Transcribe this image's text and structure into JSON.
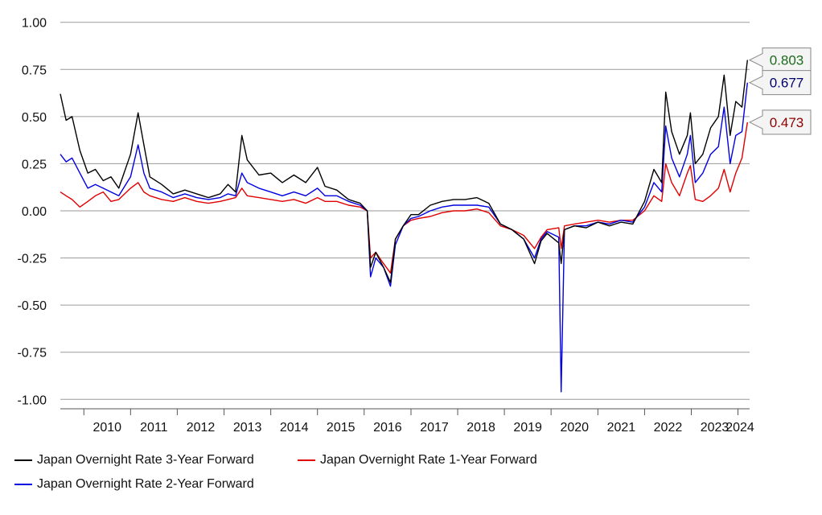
{
  "chart_data": {
    "type": "line",
    "title": "",
    "xlabel": "",
    "ylabel": "",
    "ylim": [
      -1.05,
      1.05
    ],
    "xlim": [
      "2009-07-01",
      "2024-04-01"
    ],
    "yticks": [
      "1.00",
      "0.75",
      "0.50",
      "0.25",
      "0.00",
      "-0.25",
      "-0.50",
      "-0.75",
      "-1.00"
    ],
    "ytick_values": [
      1,
      0.75,
      0.5,
      0.25,
      0,
      -0.25,
      -0.5,
      -0.75,
      -1
    ],
    "xticks": [
      "2010",
      "2011",
      "2012",
      "2013",
      "2014",
      "2015",
      "2016",
      "2017",
      "2018",
      "2019",
      "2020",
      "2021",
      "2022",
      "2023",
      "2024"
    ],
    "grid": true,
    "series": [
      {
        "name": "Japan Overnight Rate 3-Year Forward",
        "color": "#000000",
        "last_label": "0.803",
        "label_color": "#1a6b1a",
        "x": [
          "2009-07-01",
          "2009-08-15",
          "2009-10-01",
          "2009-12-01",
          "2010-02-01",
          "2010-04-01",
          "2010-06-01",
          "2010-08-01",
          "2010-10-01",
          "2011-01-01",
          "2011-03-01",
          "2011-04-15",
          "2011-06-01",
          "2011-09-01",
          "2011-12-01",
          "2012-03-01",
          "2012-06-01",
          "2012-09-01",
          "2012-12-01",
          "2013-02-01",
          "2013-04-01",
          "2013-05-20",
          "2013-07-01",
          "2013-10-01",
          "2014-01-01",
          "2014-04-01",
          "2014-07-01",
          "2014-10-01",
          "2015-01-01",
          "2015-03-01",
          "2015-06-01",
          "2015-09-01",
          "2015-12-01",
          "2016-01-25",
          "2016-02-20",
          "2016-04-01",
          "2016-06-01",
          "2016-07-25",
          "2016-09-01",
          "2016-11-01",
          "2017-01-01",
          "2017-03-01",
          "2017-06-01",
          "2017-09-01",
          "2017-12-01",
          "2018-03-01",
          "2018-06-01",
          "2018-09-01",
          "2018-12-01",
          "2019-03-01",
          "2019-06-01",
          "2019-08-25",
          "2019-10-15",
          "2019-12-01",
          "2020-03-01",
          "2020-03-20",
          "2020-04-15",
          "2020-07-01",
          "2020-10-01",
          "2021-01-01",
          "2021-04-01",
          "2021-07-01",
          "2021-10-01",
          "2022-01-01",
          "2022-03-15",
          "2022-05-15",
          "2022-06-15",
          "2022-08-01",
          "2022-10-01",
          "2022-12-01",
          "2022-12-25",
          "2023-02-01",
          "2023-04-01",
          "2023-06-01",
          "2023-08-01",
          "2023-09-15",
          "2023-11-01",
          "2023-12-15",
          "2024-02-01",
          "2024-03-15"
        ],
        "values": [
          0.62,
          0.48,
          0.5,
          0.32,
          0.2,
          0.22,
          0.16,
          0.18,
          0.12,
          0.3,
          0.52,
          0.35,
          0.18,
          0.14,
          0.09,
          0.11,
          0.09,
          0.07,
          0.09,
          0.14,
          0.1,
          0.4,
          0.27,
          0.19,
          0.2,
          0.15,
          0.19,
          0.15,
          0.23,
          0.13,
          0.11,
          0.06,
          0.04,
          0.0,
          -0.3,
          -0.22,
          -0.3,
          -0.38,
          -0.15,
          -0.08,
          -0.02,
          -0.02,
          0.03,
          0.05,
          0.06,
          0.06,
          0.07,
          0.04,
          -0.07,
          -0.1,
          -0.15,
          -0.28,
          -0.16,
          -0.12,
          -0.17,
          -0.28,
          -0.1,
          -0.08,
          -0.09,
          -0.06,
          -0.08,
          -0.06,
          -0.07,
          0.05,
          0.22,
          0.15,
          0.63,
          0.42,
          0.3,
          0.4,
          0.52,
          0.25,
          0.3,
          0.44,
          0.5,
          0.72,
          0.4,
          0.58,
          0.55,
          0.8
        ]
      },
      {
        "name": "Japan Overnight Rate 1-Year Forward",
        "color": "#e00000",
        "last_label": "0.473",
        "label_color": "#8b0000",
        "x": [
          "2009-07-01",
          "2009-08-15",
          "2009-10-01",
          "2009-12-01",
          "2010-02-01",
          "2010-04-01",
          "2010-06-01",
          "2010-08-01",
          "2010-10-01",
          "2011-01-01",
          "2011-03-01",
          "2011-04-15",
          "2011-06-01",
          "2011-09-01",
          "2011-12-01",
          "2012-03-01",
          "2012-06-01",
          "2012-09-01",
          "2012-12-01",
          "2013-02-01",
          "2013-04-01",
          "2013-05-20",
          "2013-07-01",
          "2013-10-01",
          "2014-01-01",
          "2014-04-01",
          "2014-07-01",
          "2014-10-01",
          "2015-01-01",
          "2015-03-01",
          "2015-06-01",
          "2015-09-01",
          "2015-12-01",
          "2016-01-25",
          "2016-02-20",
          "2016-04-01",
          "2016-06-01",
          "2016-07-25",
          "2016-09-01",
          "2016-11-01",
          "2017-01-01",
          "2017-03-01",
          "2017-06-01",
          "2017-09-01",
          "2017-12-01",
          "2018-03-01",
          "2018-06-01",
          "2018-09-01",
          "2018-12-01",
          "2019-03-01",
          "2019-06-01",
          "2019-08-25",
          "2019-10-15",
          "2019-12-01",
          "2020-03-01",
          "2020-03-20",
          "2020-04-15",
          "2020-07-01",
          "2020-10-01",
          "2021-01-01",
          "2021-04-01",
          "2021-07-01",
          "2021-10-01",
          "2022-01-01",
          "2022-03-15",
          "2022-05-15",
          "2022-06-15",
          "2022-08-01",
          "2022-10-01",
          "2022-12-01",
          "2022-12-25",
          "2023-02-01",
          "2023-04-01",
          "2023-06-01",
          "2023-08-01",
          "2023-09-15",
          "2023-11-01",
          "2023-12-15",
          "2024-02-01",
          "2024-03-15"
        ],
        "values": [
          0.1,
          0.08,
          0.06,
          0.02,
          0.05,
          0.08,
          0.1,
          0.05,
          0.06,
          0.12,
          0.15,
          0.1,
          0.08,
          0.06,
          0.05,
          0.07,
          0.05,
          0.04,
          0.05,
          0.06,
          0.07,
          0.12,
          0.08,
          0.07,
          0.06,
          0.05,
          0.06,
          0.04,
          0.07,
          0.05,
          0.05,
          0.03,
          0.02,
          0.0,
          -0.25,
          -0.22,
          -0.28,
          -0.33,
          -0.15,
          -0.08,
          -0.05,
          -0.04,
          -0.03,
          -0.01,
          0.0,
          0.0,
          0.01,
          -0.01,
          -0.08,
          -0.1,
          -0.13,
          -0.2,
          -0.14,
          -0.1,
          -0.09,
          -0.2,
          -0.08,
          -0.07,
          -0.06,
          -0.05,
          -0.06,
          -0.05,
          -0.05,
          0.0,
          0.08,
          0.05,
          0.25,
          0.15,
          0.08,
          0.2,
          0.24,
          0.06,
          0.05,
          0.08,
          0.12,
          0.22,
          0.1,
          0.2,
          0.28,
          0.47
        ]
      },
      {
        "name": "Japan Overnight Rate 2-Year Forward",
        "color": "#0000e0",
        "last_label": "0.677",
        "label_color": "#00006b",
        "x": [
          "2009-07-01",
          "2009-08-15",
          "2009-10-01",
          "2009-12-01",
          "2010-02-01",
          "2010-04-01",
          "2010-06-01",
          "2010-08-01",
          "2010-10-01",
          "2011-01-01",
          "2011-03-01",
          "2011-04-15",
          "2011-06-01",
          "2011-09-01",
          "2011-12-01",
          "2012-03-01",
          "2012-06-01",
          "2012-09-01",
          "2012-12-01",
          "2013-02-01",
          "2013-04-01",
          "2013-05-20",
          "2013-07-01",
          "2013-10-01",
          "2014-01-01",
          "2014-04-01",
          "2014-07-01",
          "2014-10-01",
          "2015-01-01",
          "2015-03-01",
          "2015-06-01",
          "2015-09-01",
          "2015-12-01",
          "2016-01-25",
          "2016-02-20",
          "2016-04-01",
          "2016-06-01",
          "2016-07-25",
          "2016-09-01",
          "2016-11-01",
          "2017-01-01",
          "2017-03-01",
          "2017-06-01",
          "2017-09-01",
          "2017-12-01",
          "2018-03-01",
          "2018-06-01",
          "2018-09-01",
          "2018-12-01",
          "2019-03-01",
          "2019-06-01",
          "2019-08-25",
          "2019-10-15",
          "2019-12-01",
          "2020-03-01",
          "2020-03-20",
          "2020-04-15",
          "2020-07-01",
          "2020-10-01",
          "2021-01-01",
          "2021-04-01",
          "2021-07-01",
          "2021-10-01",
          "2022-01-01",
          "2022-03-15",
          "2022-05-15",
          "2022-06-15",
          "2022-08-01",
          "2022-10-01",
          "2022-12-01",
          "2022-12-25",
          "2023-02-01",
          "2023-04-01",
          "2023-06-01",
          "2023-08-01",
          "2023-09-15",
          "2023-11-01",
          "2023-12-15",
          "2024-02-01",
          "2024-03-15"
        ],
        "values": [
          0.3,
          0.26,
          0.28,
          0.2,
          0.12,
          0.14,
          0.12,
          0.1,
          0.08,
          0.18,
          0.35,
          0.2,
          0.12,
          0.1,
          0.07,
          0.09,
          0.07,
          0.06,
          0.07,
          0.09,
          0.08,
          0.2,
          0.15,
          0.12,
          0.1,
          0.08,
          0.1,
          0.08,
          0.12,
          0.08,
          0.08,
          0.05,
          0.03,
          0.0,
          -0.35,
          -0.25,
          -0.3,
          -0.4,
          -0.18,
          -0.08,
          -0.04,
          -0.03,
          0.0,
          0.02,
          0.03,
          0.03,
          0.03,
          0.02,
          -0.07,
          -0.1,
          -0.15,
          -0.25,
          -0.15,
          -0.11,
          -0.14,
          -0.96,
          -0.1,
          -0.08,
          -0.08,
          -0.06,
          -0.07,
          -0.05,
          -0.06,
          0.02,
          0.15,
          0.1,
          0.45,
          0.28,
          0.18,
          0.3,
          0.4,
          0.15,
          0.2,
          0.3,
          0.34,
          0.55,
          0.25,
          0.4,
          0.42,
          0.68
        ]
      }
    ],
    "legend": {
      "placement": "bottom-left"
    }
  }
}
